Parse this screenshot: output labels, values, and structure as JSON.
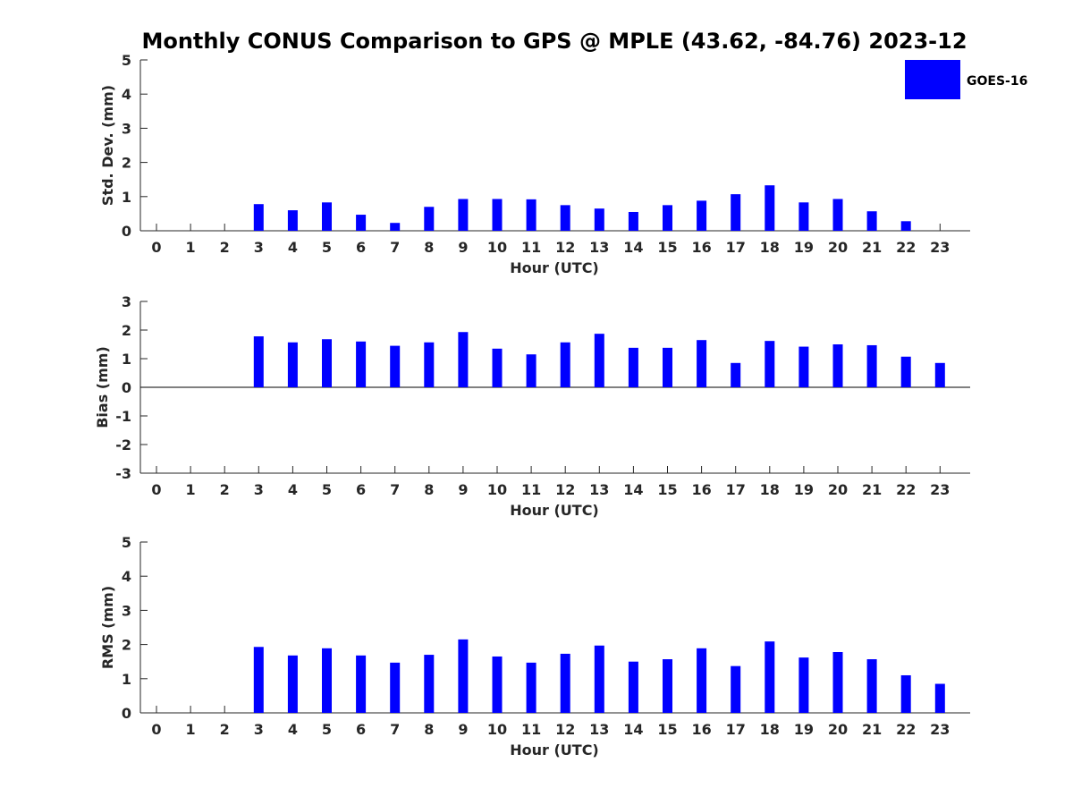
{
  "chart_data": [
    {
      "type": "bar",
      "title": "Monthly CONUS Comparison to GPS @ MPLE (43.62, -84.76) 2023-12",
      "xlabel": "Hour (UTC)",
      "ylabel": "Std. Dev. (mm)",
      "ylim": [
        0,
        5
      ],
      "yticks": [
        "0",
        "1",
        "2",
        "3",
        "4",
        "5"
      ],
      "categories": [
        "0",
        "1",
        "2",
        "3",
        "4",
        "5",
        "6",
        "7",
        "8",
        "9",
        "10",
        "11",
        "12",
        "13",
        "14",
        "15",
        "16",
        "17",
        "18",
        "19",
        "20",
        "21",
        "22",
        "23"
      ],
      "series": [
        {
          "name": "GOES-16",
          "color": "#0000ff",
          "values": [
            null,
            null,
            null,
            0.78,
            0.6,
            0.83,
            0.47,
            0.23,
            0.7,
            0.93,
            0.93,
            0.92,
            0.75,
            0.65,
            0.55,
            0.75,
            0.88,
            1.07,
            1.33,
            0.83,
            0.93,
            0.57,
            0.28,
            null
          ]
        }
      ],
      "legend": {
        "entries": [
          "GOES-16"
        ],
        "position": "top-right"
      }
    },
    {
      "type": "bar",
      "xlabel": "Hour (UTC)",
      "ylabel": "Bias (mm)",
      "ylim": [
        -3,
        3
      ],
      "yticks": [
        "-3",
        "-2",
        "-1",
        "0",
        "1",
        "2",
        "3"
      ],
      "categories": [
        "0",
        "1",
        "2",
        "3",
        "4",
        "5",
        "6",
        "7",
        "8",
        "9",
        "10",
        "11",
        "12",
        "13",
        "14",
        "15",
        "16",
        "17",
        "18",
        "19",
        "20",
        "21",
        "22",
        "23"
      ],
      "series": [
        {
          "name": "GOES-16",
          "color": "#0000ff",
          "values": [
            null,
            null,
            null,
            1.78,
            1.57,
            1.68,
            1.6,
            1.45,
            1.57,
            1.93,
            1.35,
            1.15,
            1.57,
            1.87,
            1.38,
            1.38,
            1.65,
            0.85,
            1.62,
            1.42,
            1.5,
            1.47,
            1.07,
            0.85
          ]
        }
      ]
    },
    {
      "type": "bar",
      "xlabel": "Hour (UTC)",
      "ylabel": "RMS (mm)",
      "ylim": [
        0,
        5
      ],
      "yticks": [
        "0",
        "1",
        "2",
        "3",
        "4",
        "5"
      ],
      "categories": [
        "0",
        "1",
        "2",
        "3",
        "4",
        "5",
        "6",
        "7",
        "8",
        "9",
        "10",
        "11",
        "12",
        "13",
        "14",
        "15",
        "16",
        "17",
        "18",
        "19",
        "20",
        "21",
        "22",
        "23"
      ],
      "series": [
        {
          "name": "GOES-16",
          "color": "#0000ff",
          "values": [
            null,
            null,
            null,
            1.93,
            1.68,
            1.89,
            1.68,
            1.47,
            1.7,
            2.15,
            1.65,
            1.47,
            1.73,
            1.97,
            1.5,
            1.57,
            1.89,
            1.37,
            2.09,
            1.62,
            1.78,
            1.57,
            1.1,
            0.85
          ]
        }
      ]
    }
  ]
}
